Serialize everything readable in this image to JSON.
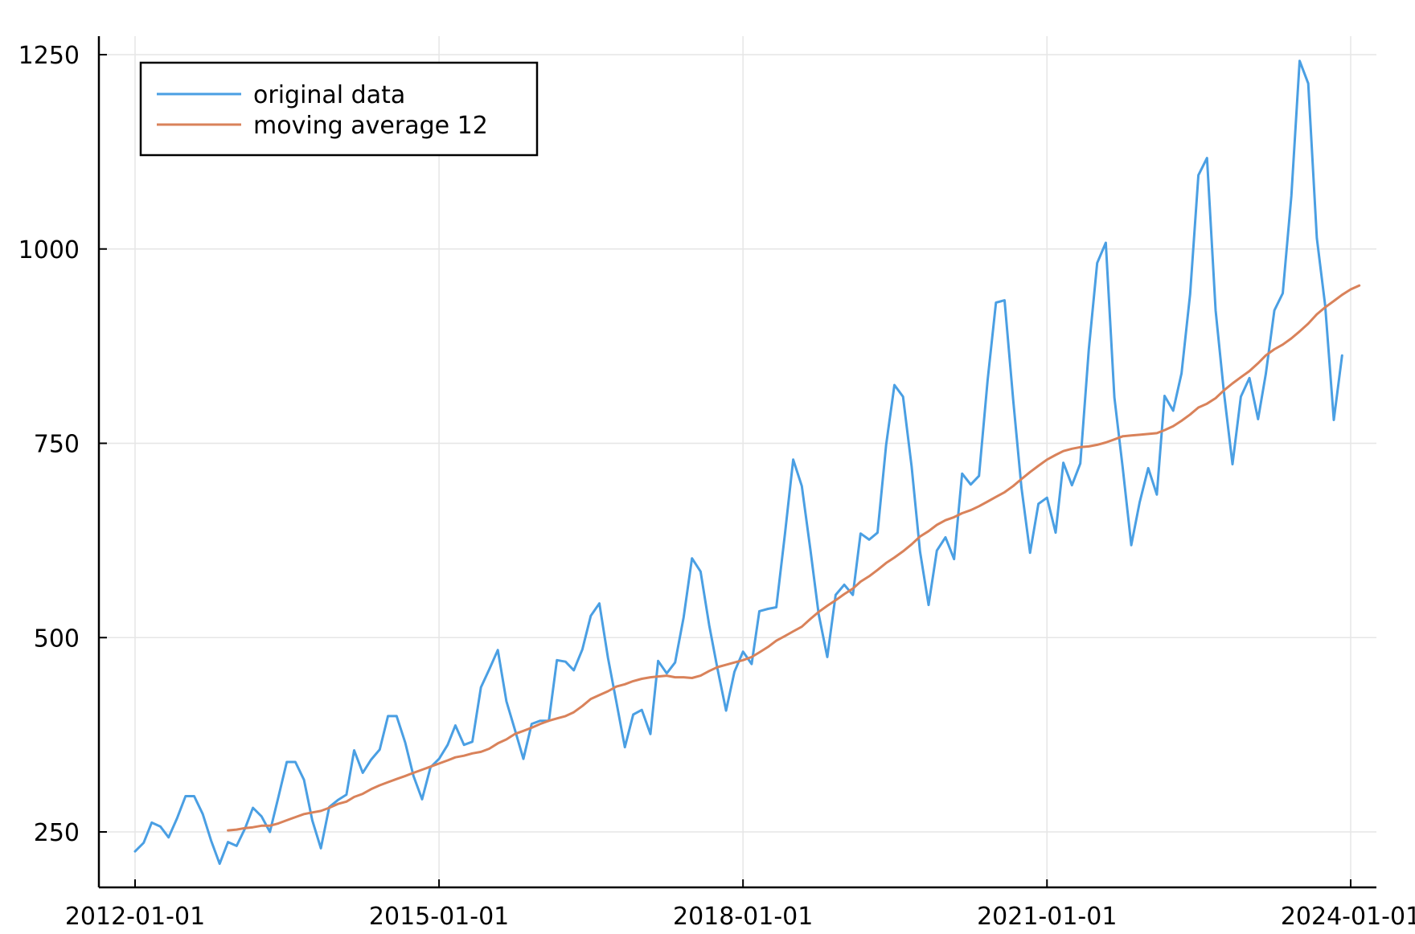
{
  "chart_data": {
    "type": "line",
    "title": "",
    "xlabel": "",
    "ylabel": "",
    "x_range": [
      "2012-01-01",
      "2024-01-01"
    ],
    "ylim": [
      177,
      1270
    ],
    "x_ticks": [
      "2012-01-01",
      "2015-01-01",
      "2018-01-01",
      "2021-01-01",
      "2024-01-01"
    ],
    "y_ticks": [
      250,
      500,
      750,
      1000,
      1250
    ],
    "grid": true,
    "legend": {
      "placement": "top-left",
      "entries": [
        "original data",
        "moving average 12"
      ]
    },
    "colors": {
      "original data": "#4a9fe3",
      "moving average 12": "#d9825a"
    },
    "series": [
      {
        "name": "original data",
        "x_start": "2012-01",
        "frequency": "monthly",
        "values": [
          225,
          236,
          262,
          257,
          243,
          268,
          296,
          296,
          273,
          239,
          209,
          237,
          232,
          255,
          281,
          270,
          250,
          295,
          340,
          340,
          317,
          265,
          229,
          282,
          291,
          298,
          355,
          326,
          343,
          356,
          399,
          399,
          365,
          322,
          292,
          333,
          344,
          362,
          387,
          362,
          366,
          436,
          459,
          484,
          418,
          382,
          344,
          389,
          393,
          393,
          471,
          469,
          458,
          485,
          528,
          544,
          474,
          418,
          359,
          401,
          407,
          376,
          470,
          454,
          468,
          526,
          602,
          585,
          516,
          460,
          406,
          456,
          482,
          466,
          534,
          537,
          539,
          633,
          729,
          695,
          613,
          530,
          475,
          555,
          568,
          555,
          634,
          626,
          635,
          748,
          825,
          810,
          720,
          611,
          542,
          612,
          629,
          601,
          711,
          697,
          708,
          831,
          931,
          934,
          806,
          693,
          609,
          672,
          680,
          635,
          725,
          696,
          724,
          871,
          982,
          1008,
          809,
          719,
          619,
          674,
          718,
          684,
          811,
          792,
          840,
          942,
          1095,
          1117,
          921,
          816,
          723,
          810,
          834,
          781,
          839,
          921,
          943,
          1068,
          1242,
          1213,
          1014,
          927,
          780,
          863
        ]
      },
      {
        "name": "moving average 12",
        "x_start": "2012-12",
        "frequency": "monthly",
        "values": [
          252,
          253,
          255,
          256,
          258,
          258,
          261,
          265,
          269,
          273,
          275,
          277,
          281,
          286,
          289,
          295,
          299,
          305,
          310,
          314,
          318,
          322,
          326,
          330,
          334,
          338,
          342,
          346,
          348,
          351,
          353,
          357,
          364,
          369,
          376,
          380,
          384,
          389,
          393,
          396,
          399,
          404,
          412,
          421,
          426,
          431,
          437,
          440,
          444,
          447,
          449,
          450,
          451,
          449,
          449,
          448,
          451,
          457,
          462,
          465,
          468,
          471,
          475,
          481,
          488,
          496,
          502,
          508,
          514,
          524,
          533,
          541,
          548,
          556,
          563,
          572,
          579,
          587,
          596,
          603,
          611,
          620,
          630,
          637,
          645,
          651,
          655,
          660,
          664,
          669,
          675,
          681,
          687,
          695,
          704,
          713,
          721,
          729,
          735,
          740,
          743,
          745,
          746,
          748,
          751,
          755,
          759,
          760,
          761,
          762,
          763,
          767,
          772,
          779,
          787,
          796,
          801,
          808,
          818,
          827,
          835,
          843,
          853,
          863,
          871,
          877,
          885,
          894,
          904,
          916,
          925,
          933,
          941,
          948,
          953
        ]
      }
    ]
  }
}
